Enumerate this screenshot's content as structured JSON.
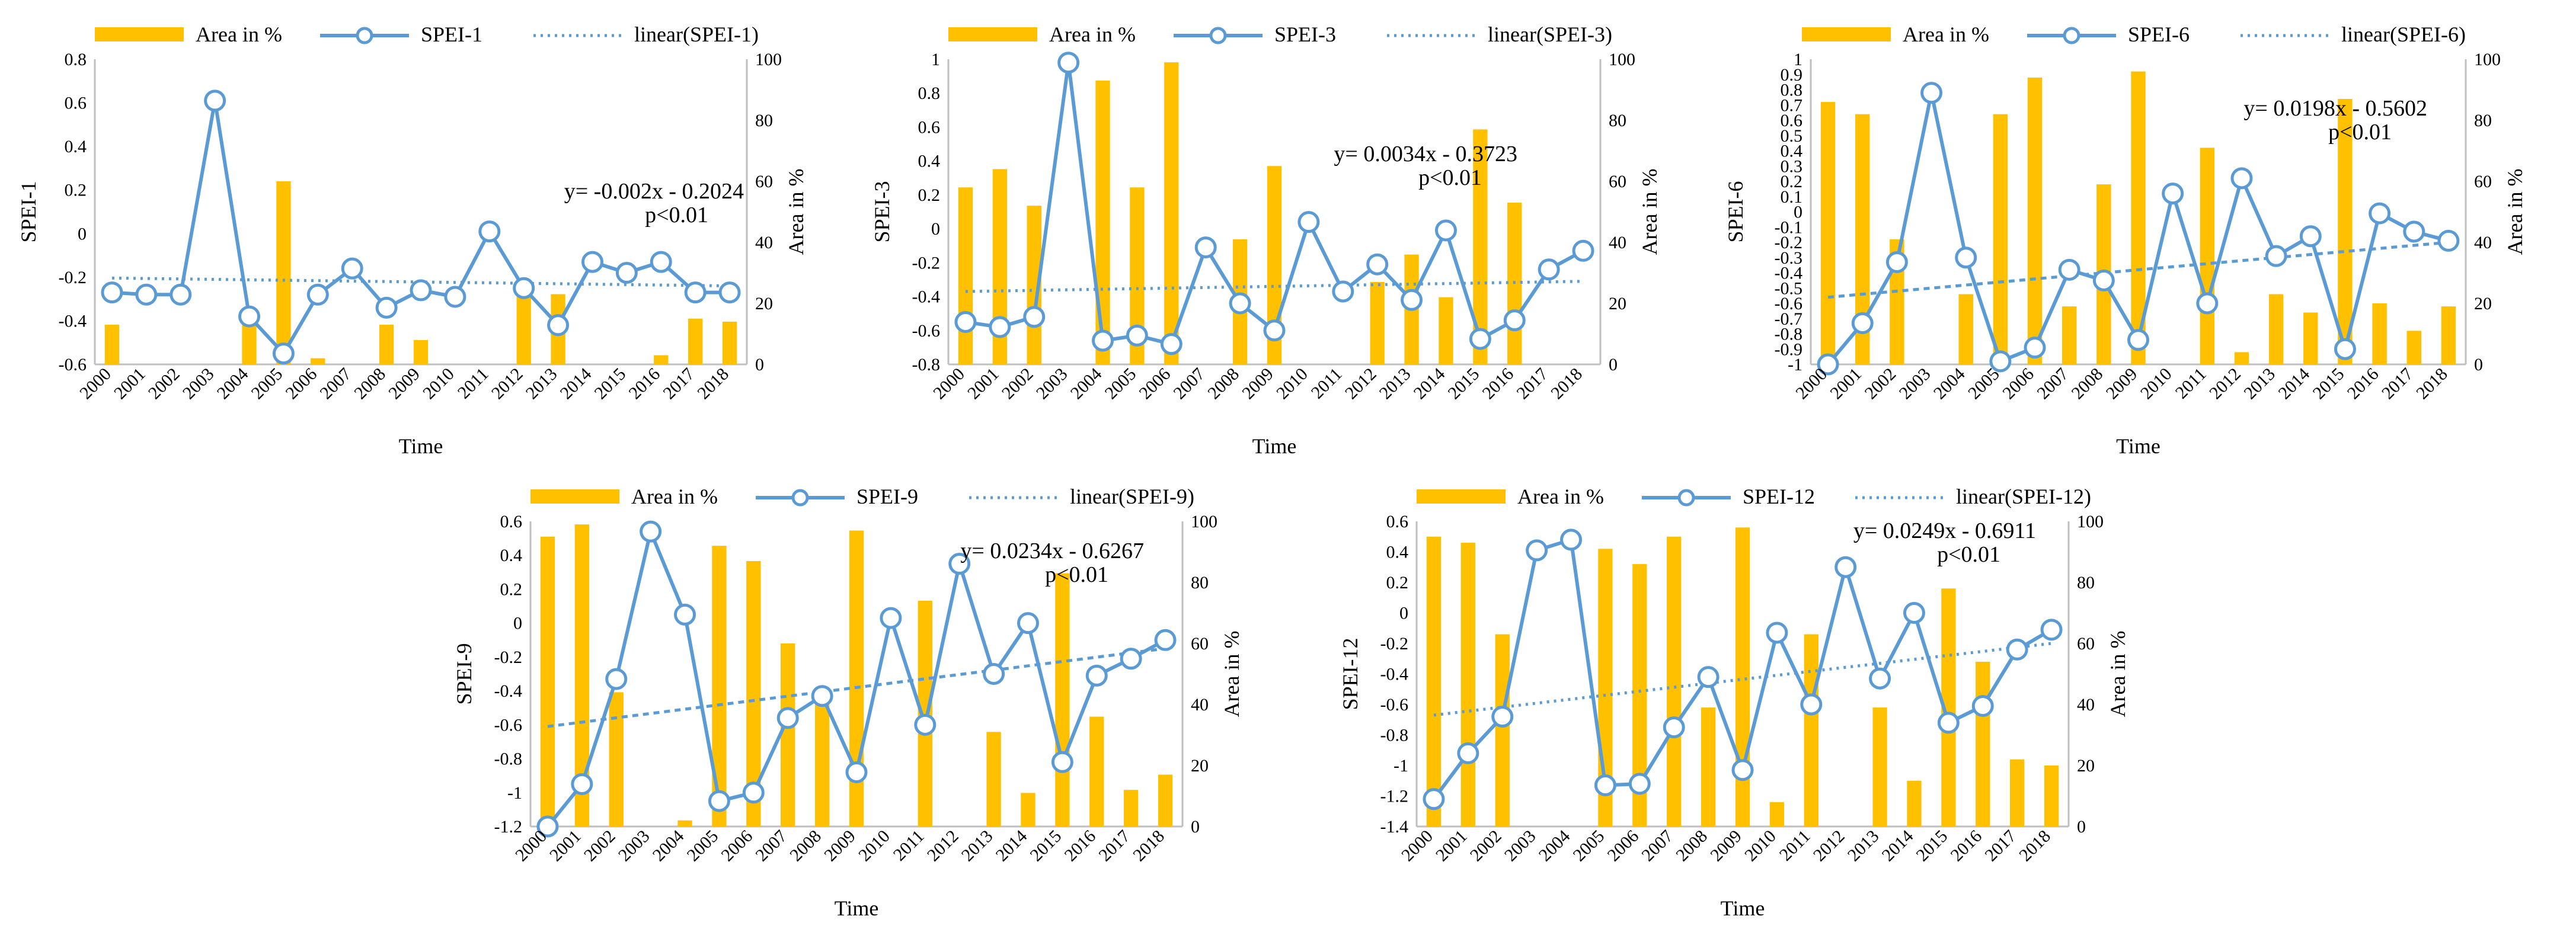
{
  "colors": {
    "bar": "#FFC000",
    "line": "#5B9BD5"
  },
  "chart_data": [
    {
      "type": "bar+line",
      "years": [
        "2000",
        "2001",
        "2002",
        "2003",
        "2004",
        "2005",
        "2006",
        "2007",
        "2008",
        "2009",
        "2010",
        "2011",
        "2012",
        "2013",
        "2014",
        "2015",
        "2016",
        "2017",
        "2018"
      ],
      "series_bar": {
        "name": "Area in %",
        "values": [
          13,
          0,
          0,
          0,
          18,
          60,
          2,
          0,
          13,
          8,
          0,
          0,
          27,
          23,
          0,
          0,
          3,
          15,
          14
        ]
      },
      "series_line": {
        "name": "SPEI-1",
        "values": [
          -0.27,
          -0.28,
          -0.28,
          0.61,
          -0.38,
          -0.55,
          -0.28,
          -0.16,
          -0.34,
          -0.26,
          -0.29,
          0.01,
          -0.25,
          -0.42,
          -0.13,
          -0.18,
          -0.13,
          -0.27,
          -0.27
        ]
      },
      "trend": {
        "name": "linear(SPEI-1)",
        "start": -0.204,
        "end": -0.24
      },
      "equation": "y= -0.002x - 0.2024",
      "pvalue": "p<0.01",
      "y_left": {
        "label": "SPEI-1",
        "min": -0.6,
        "max": 0.8,
        "ticks": [
          "-0.6",
          "-0.4",
          "-0.2",
          "0",
          "0.2",
          "0.4",
          "0.6",
          "0.8"
        ]
      },
      "y_right": {
        "label": "Area in %",
        "min": 0,
        "max": 100,
        "ticks": [
          "0",
          "20",
          "40",
          "60",
          "80",
          "100"
        ]
      },
      "xlabel": "Time"
    },
    {
      "type": "bar+line",
      "years": [
        "2000",
        "2001",
        "2002",
        "2003",
        "2004",
        "2005",
        "2006",
        "2007",
        "2008",
        "2009",
        "2010",
        "2011",
        "2012",
        "2013",
        "2014",
        "2015",
        "2016",
        "2017",
        "2018"
      ],
      "series_bar": {
        "name": "Area in %",
        "values": [
          58,
          64,
          52,
          0,
          93,
          58,
          99,
          0,
          41,
          65,
          0,
          0,
          27,
          36,
          22,
          77,
          53,
          0,
          0
        ]
      },
      "series_line": {
        "name": "SPEI-3",
        "values": [
          -0.55,
          -0.58,
          -0.52,
          0.98,
          -0.66,
          -0.63,
          -0.68,
          -0.11,
          -0.44,
          -0.6,
          0.04,
          -0.37,
          -0.21,
          -0.42,
          -0.01,
          -0.65,
          -0.54,
          -0.24,
          -0.13
        ]
      },
      "trend": {
        "name": "linear(SPEI-3)",
        "start": -0.37,
        "end": -0.31
      },
      "equation": "y= 0.0034x - 0.3723",
      "pvalue": "p<0.01",
      "y_left": {
        "label": "SPEI-3",
        "min": -0.8,
        "max": 1.0,
        "ticks": [
          "-0.8",
          "-0.6",
          "-0.4",
          "-0.2",
          "0",
          "0.2",
          "0.4",
          "0.6",
          "0.8",
          "1"
        ]
      },
      "y_right": {
        "label": "Area in %",
        "min": 0,
        "max": 100,
        "ticks": [
          "0",
          "20",
          "40",
          "60",
          "80",
          "100"
        ]
      },
      "xlabel": "Time"
    },
    {
      "type": "bar+line",
      "years": [
        "2000",
        "2001",
        "2002",
        "2003",
        "2004",
        "2005",
        "2006",
        "2007",
        "2008",
        "2009",
        "2010",
        "2011",
        "2012",
        "2013",
        "2014",
        "2015",
        "2016",
        "2017",
        "2018"
      ],
      "series_bar": {
        "name": "Area in %",
        "values": [
          86,
          82,
          41,
          0,
          23,
          82,
          94,
          19,
          59,
          96,
          0,
          71,
          4,
          23,
          17,
          87,
          20,
          11,
          19
        ]
      },
      "series_line": {
        "name": "SPEI-6",
        "values": [
          -1.0,
          -0.73,
          -0.33,
          0.78,
          -0.3,
          -0.98,
          -0.89,
          -0.38,
          -0.45,
          -0.84,
          0.12,
          -0.6,
          0.22,
          -0.29,
          -0.16,
          -0.9,
          -0.01,
          -0.13,
          -0.19
        ]
      },
      "trend": {
        "name": "linear(SPEI-6)",
        "start": -0.56,
        "end": -0.2
      },
      "equation": "y= 0.0198x - 0.5602",
      "pvalue": "p<0.01",
      "y_left": {
        "label": "SPEI-6",
        "min": -1.0,
        "max": 1.0,
        "ticks": [
          "-1",
          "-0.9",
          "-0.8",
          "-0.7",
          "-0.6",
          "-0.5",
          "-0.4",
          "-0.3",
          "-0.2",
          "-0.1",
          "0",
          "0.1",
          "0.2",
          "0.3",
          "0.4",
          "0.5",
          "0.6",
          "0.7",
          "0.8",
          "0.9",
          "1"
        ]
      },
      "y_right": {
        "label": "Area in %",
        "min": 0,
        "max": 100,
        "ticks": [
          "0",
          "20",
          "40",
          "60",
          "80",
          "100"
        ]
      },
      "xlabel": "Time"
    },
    {
      "type": "bar+line",
      "years": [
        "2000",
        "2001",
        "2002",
        "2003",
        "2004",
        "2005",
        "2006",
        "2007",
        "2008",
        "2009",
        "2010",
        "2011",
        "2012",
        "2013",
        "2014",
        "2015",
        "2016",
        "2017",
        "2018"
      ],
      "series_bar": {
        "name": "Area in %",
        "values": [
          95,
          99,
          44,
          0,
          2,
          92,
          87,
          60,
          44,
          97,
          0,
          74,
          0,
          31,
          11,
          83,
          36,
          12,
          17
        ]
      },
      "series_line": {
        "name": "SPEI-9",
        "values": [
          -1.2,
          -0.95,
          -0.33,
          0.54,
          0.05,
          -1.05,
          -1.0,
          -0.56,
          -0.43,
          -0.88,
          0.03,
          -0.6,
          0.35,
          -0.3,
          0.0,
          -0.82,
          -0.31,
          -0.21,
          -0.1
        ]
      },
      "trend": {
        "name": "linear(SPEI-9)",
        "start": -0.61,
        "end": -0.15
      },
      "equation": "y= 0.0234x - 0.6267",
      "pvalue": "p<0.01",
      "y_left": {
        "label": "SPEI-9",
        "min": -1.2,
        "max": 0.6,
        "ticks": [
          "-1.2",
          "-1",
          "-0.8",
          "-0.6",
          "-0.4",
          "-0.2",
          "0",
          "0.2",
          "0.4",
          "0.6"
        ]
      },
      "y_right": {
        "label": "Area in %",
        "min": 0,
        "max": 100,
        "ticks": [
          "0",
          "20",
          "40",
          "60",
          "80",
          "100"
        ]
      },
      "xlabel": "Time"
    },
    {
      "type": "bar+line",
      "years": [
        "2000",
        "2001",
        "2002",
        "2003",
        "2004",
        "2005",
        "2006",
        "2007",
        "2008",
        "2009",
        "2010",
        "2011",
        "2012",
        "2013",
        "2014",
        "2015",
        "2016",
        "2017",
        "2018"
      ],
      "series_bar": {
        "name": "Area in %",
        "values": [
          95,
          93,
          63,
          0,
          0,
          91,
          86,
          95,
          39,
          98,
          8,
          63,
          0,
          39,
          15,
          78,
          54,
          22,
          20
        ]
      },
      "series_line": {
        "name": "SPEI-12",
        "values": [
          -1.22,
          -0.92,
          -0.68,
          0.41,
          0.48,
          -1.13,
          -1.12,
          -0.75,
          -0.42,
          -1.03,
          -0.13,
          -0.6,
          0.3,
          -0.43,
          0.0,
          -0.72,
          -0.61,
          -0.24,
          -0.11
        ]
      },
      "trend": {
        "name": "linear(SPEI-12)",
        "start": -0.67,
        "end": -0.2
      },
      "equation": "y= 0.0249x - 0.6911",
      "pvalue": "p<0.01",
      "y_left": {
        "label": "SPEI-12",
        "min": -1.4,
        "max": 0.6,
        "ticks": [
          "-1.4",
          "-1.2",
          "-1",
          "-0.8",
          "-0.6",
          "-0.4",
          "-0.2",
          "0",
          "0.2",
          "0.4",
          "0.6"
        ]
      },
      "y_right": {
        "label": "Area in %",
        "min": 0,
        "max": 100,
        "ticks": [
          "0",
          "20",
          "40",
          "60",
          "80",
          "100"
        ]
      },
      "xlabel": "Time"
    }
  ]
}
